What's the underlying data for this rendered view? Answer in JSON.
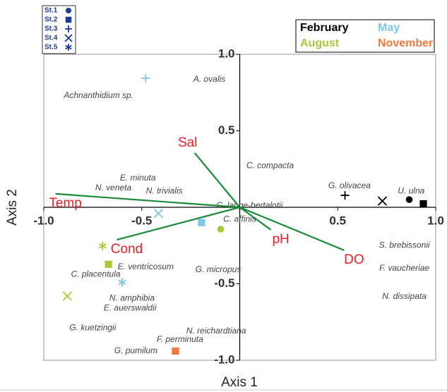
{
  "chart_data": {
    "type": "biplot",
    "xlabel": "Axis 1",
    "ylabel": "Axis 2",
    "xlim": [
      -1,
      1
    ],
    "ylim": [
      -1,
      1
    ],
    "xticks": [
      {
        "value": -1,
        "label": "-1.0"
      },
      -0.5,
      0.5,
      {
        "value": 1,
        "label": "1.0"
      }
    ],
    "yticks": [
      {
        "value": 1,
        "label": "1.0"
      },
      0.5,
      -0.5,
      {
        "value": -1,
        "label": "-1.0"
      }
    ],
    "stations": [
      {
        "name": "St.1",
        "marker": "circle"
      },
      {
        "name": "St.2",
        "marker": "square"
      },
      {
        "name": "St.3",
        "marker": "plus"
      },
      {
        "name": "St.4",
        "marker": "cross"
      },
      {
        "name": "St.5",
        "marker": "asterisk"
      }
    ],
    "station_color": "#1f3a93",
    "series": [
      {
        "name": "February",
        "color": "#000000",
        "station": [
          "St.3",
          "St.4",
          "St.1",
          "St.2"
        ],
        "x": [
          0.537,
          0.728,
          0.865,
          0.937
        ],
        "y": [
          0.078,
          0.041,
          0.05,
          0.023
        ]
      },
      {
        "name": "May",
        "color": "#7ec8e3",
        "station": [
          "St.3",
          "St.4",
          "St.2",
          "St.5"
        ],
        "x": [
          -0.48,
          -0.415,
          -0.195,
          -0.6
        ],
        "y": [
          0.843,
          -0.04,
          -0.1,
          -0.49
        ]
      },
      {
        "name": "August",
        "color": "#a8c83c",
        "station": [
          "St.1",
          "St.5",
          "St.2",
          "St.4"
        ],
        "x": [
          -0.097,
          -0.7,
          -0.67,
          -0.88
        ],
        "y": [
          -0.143,
          -0.253,
          -0.373,
          -0.58
        ]
      },
      {
        "name": "November",
        "color": "#f07a3c",
        "station": [
          "St.2"
        ],
        "x": [
          -0.328
        ],
        "y": [
          -0.94
        ]
      }
    ],
    "species": {
      "names": [
        "A. ovalis",
        "Achnanthidium sp.",
        "C. compacta",
        "E. minuta",
        "N. veneta",
        "N. trivialis",
        "C. lange-bertalotii",
        "C. affinis",
        "G. olivacea",
        "U. ulna",
        "S. brebissonii",
        "F. vaucheriae",
        "N. dissipata",
        "E. ventricosum",
        "C. placentula",
        "G. micropus",
        "N. amphibia",
        "E. auerswaldii",
        "G. kuetzingii",
        "N. reichardtiana",
        "F. perminuta",
        "G. pumilum"
      ],
      "x": [
        -0.155,
        -0.72,
        0.155,
        -0.52,
        -0.645,
        -0.385,
        0.05,
        0.0,
        0.56,
        0.875,
        0.84,
        0.84,
        0.84,
        -0.48,
        -0.735,
        -0.11,
        -0.55,
        -0.56,
        -0.75,
        -0.12,
        -0.305,
        -0.53
      ],
      "y": [
        0.834,
        0.73,
        0.27,
        0.19,
        0.125,
        0.105,
        0.01,
        -0.08,
        0.14,
        0.105,
        -0.25,
        -0.4,
        -0.585,
        -0.39,
        -0.44,
        -0.41,
        -0.595,
        -0.66,
        -0.79,
        -0.81,
        -0.865,
        -0.94
      ]
    },
    "vectors": {
      "names": [
        "Temp",
        "Sal",
        "Cond",
        "pH",
        "DO"
      ],
      "x": [
        -0.94,
        -0.23,
        -0.627,
        0.159,
        0.533
      ],
      "y": [
        0.088,
        0.355,
        -0.212,
        -0.147,
        -0.281
      ],
      "color": "#1a8a3a",
      "label_color": "#e8202a"
    }
  }
}
